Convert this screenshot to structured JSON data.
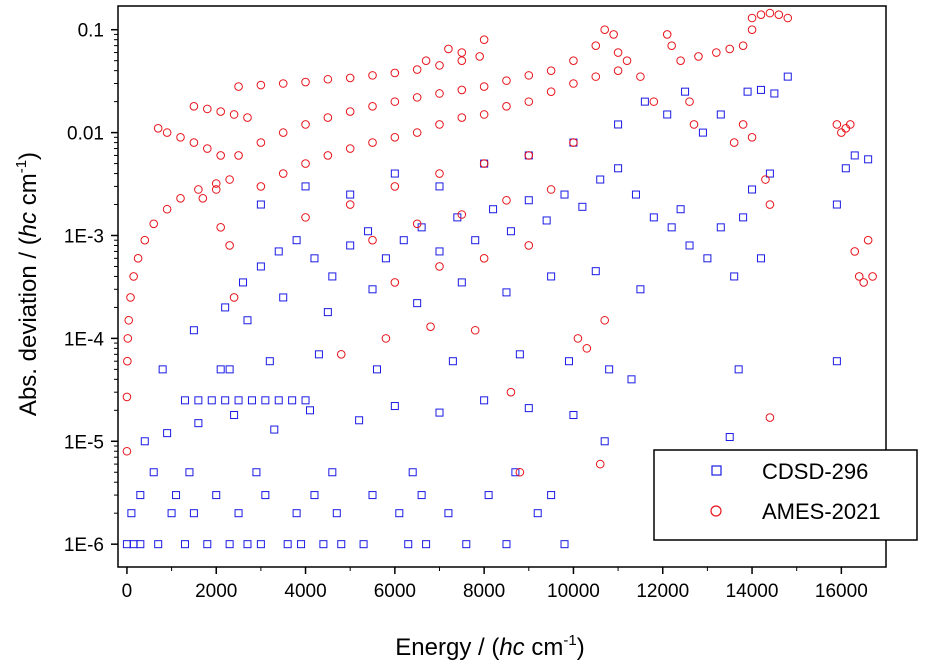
{
  "chart_data": {
    "type": "scatter",
    "title": "",
    "xlabel": {
      "prefix": "Energy / (",
      "italic": "hc",
      "unit": " cm",
      "sup": "-1",
      "suffix": ")"
    },
    "ylabel": {
      "prefix": "Abs. deviation / (",
      "italic": "hc",
      "unit": " cm",
      "sup": "-1",
      "suffix": ")"
    },
    "xlim": [
      -200,
      17000
    ],
    "ylim": [
      6e-07,
      0.17
    ],
    "yscale": "log",
    "x_ticks": [
      0,
      2000,
      4000,
      6000,
      8000,
      10000,
      12000,
      14000,
      16000
    ],
    "x_tick_labels": [
      "0",
      "2000",
      "4000",
      "6000",
      "8000",
      "10000",
      "12000",
      "14000",
      "16000"
    ],
    "y_ticks": [
      1e-06,
      1e-05,
      0.0001,
      0.001,
      0.01,
      0.1
    ],
    "y_tick_labels": [
      "1E-6",
      "1E-5",
      "1E-4",
      "1E-3",
      "0.01",
      "0.1"
    ],
    "legend_position": "bottom-right",
    "series": [
      {
        "name": "CDSD-296",
        "marker": "square",
        "color": "#1a1ae6",
        "note": "representative sample of the dense point cloud",
        "points": [
          [
            0,
            1e-06
          ],
          [
            150,
            1e-06
          ],
          [
            300,
            1e-06
          ],
          [
            700,
            1e-06
          ],
          [
            1300,
            1e-06
          ],
          [
            1800,
            1e-06
          ],
          [
            2300,
            1e-06
          ],
          [
            2700,
            1e-06
          ],
          [
            3000,
            1e-06
          ],
          [
            3600,
            1e-06
          ],
          [
            3900,
            1e-06
          ],
          [
            4400,
            1e-06
          ],
          [
            4800,
            1e-06
          ],
          [
            5300,
            1e-06
          ],
          [
            6300,
            1e-06
          ],
          [
            6700,
            1e-06
          ],
          [
            7600,
            1e-06
          ],
          [
            8500,
            1e-06
          ],
          [
            9800,
            1e-06
          ],
          [
            100,
            2e-06
          ],
          [
            1000,
            2e-06
          ],
          [
            1500,
            2e-06
          ],
          [
            2500,
            2e-06
          ],
          [
            3800,
            2e-06
          ],
          [
            4700,
            2e-06
          ],
          [
            6100,
            2e-06
          ],
          [
            7200,
            2e-06
          ],
          [
            9200,
            2e-06
          ],
          [
            300,
            3e-06
          ],
          [
            1100,
            3e-06
          ],
          [
            2000,
            3e-06
          ],
          [
            3100,
            3e-06
          ],
          [
            4200,
            3e-06
          ],
          [
            5500,
            3e-06
          ],
          [
            6600,
            3e-06
          ],
          [
            8100,
            3e-06
          ],
          [
            9500,
            3e-06
          ],
          [
            600,
            5e-06
          ],
          [
            1400,
            5e-06
          ],
          [
            2900,
            5e-06
          ],
          [
            4600,
            5e-06
          ],
          [
            6400,
            5e-06
          ],
          [
            8700,
            5e-06
          ],
          [
            400,
            1e-05
          ],
          [
            900,
            1.2e-05
          ],
          [
            1600,
            1.5e-05
          ],
          [
            2400,
            1.8e-05
          ],
          [
            3300,
            1.3e-05
          ],
          [
            4100,
            2e-05
          ],
          [
            5200,
            1.6e-05
          ],
          [
            6000,
            2.2e-05
          ],
          [
            7000,
            1.9e-05
          ],
          [
            8000,
            2.5e-05
          ],
          [
            9000,
            2.1e-05
          ],
          [
            10000,
            1.8e-05
          ],
          [
            10700,
            1e-05
          ],
          [
            13500,
            1.1e-05
          ],
          [
            1300,
            2.5e-05
          ],
          [
            1600,
            2.5e-05
          ],
          [
            1900,
            2.5e-05
          ],
          [
            2200,
            2.5e-05
          ],
          [
            2500,
            2.5e-05
          ],
          [
            2800,
            2.5e-05
          ],
          [
            3100,
            2.5e-05
          ],
          [
            3400,
            2.5e-05
          ],
          [
            3700,
            2.5e-05
          ],
          [
            4000,
            2.5e-05
          ],
          [
            800,
            5e-05
          ],
          [
            2100,
            5e-05
          ],
          [
            2300,
            5e-05
          ],
          [
            3200,
            6e-05
          ],
          [
            4300,
            7e-05
          ],
          [
            5600,
            5e-05
          ],
          [
            7300,
            6e-05
          ],
          [
            8800,
            7e-05
          ],
          [
            9900,
            6e-05
          ],
          [
            10800,
            5e-05
          ],
          [
            11300,
            4e-05
          ],
          [
            13700,
            5e-05
          ],
          [
            15900,
            6e-05
          ],
          [
            1500,
            0.00012
          ],
          [
            2200,
            0.0002
          ],
          [
            2600,
            0.00035
          ],
          [
            3000,
            0.0005
          ],
          [
            3400,
            0.0007
          ],
          [
            3800,
            0.0009
          ],
          [
            4200,
            0.0006
          ],
          [
            4600,
            0.0004
          ],
          [
            5000,
            0.0008
          ],
          [
            5400,
            0.0011
          ],
          [
            5800,
            0.0006
          ],
          [
            6200,
            0.0009
          ],
          [
            6600,
            0.0012
          ],
          [
            7000,
            0.0007
          ],
          [
            7400,
            0.0015
          ],
          [
            7800,
            0.0009
          ],
          [
            8200,
            0.0018
          ],
          [
            8600,
            0.0011
          ],
          [
            9000,
            0.0022
          ],
          [
            9400,
            0.0014
          ],
          [
            9800,
            0.0025
          ],
          [
            10200,
            0.0019
          ],
          [
            10600,
            0.0035
          ],
          [
            11000,
            0.0045
          ],
          [
            11400,
            0.0025
          ],
          [
            11800,
            0.0015
          ],
          [
            12200,
            0.0012
          ],
          [
            12400,
            0.0018
          ],
          [
            12600,
            0.0008
          ],
          [
            13000,
            0.0006
          ],
          [
            13300,
            0.0012
          ],
          [
            13600,
            0.0004
          ],
          [
            13800,
            0.0015
          ],
          [
            14000,
            0.0028
          ],
          [
            14200,
            0.0006
          ],
          [
            14400,
            0.004
          ],
          [
            15900,
            0.002
          ],
          [
            16100,
            0.0045
          ],
          [
            16300,
            0.006
          ],
          [
            16600,
            0.0055
          ],
          [
            2700,
            0.00015
          ],
          [
            3500,
            0.00025
          ],
          [
            4500,
            0.00018
          ],
          [
            5500,
            0.0003
          ],
          [
            6500,
            0.00022
          ],
          [
            7500,
            0.00035
          ],
          [
            8500,
            0.00028
          ],
          [
            9500,
            0.0004
          ],
          [
            10500,
            0.00045
          ],
          [
            11500,
            0.0003
          ],
          [
            11600,
            0.02
          ],
          [
            12100,
            0.015
          ],
          [
            12500,
            0.025
          ],
          [
            12900,
            0.01
          ],
          [
            13300,
            0.015
          ],
          [
            13900,
            0.025
          ],
          [
            14200,
            0.026
          ],
          [
            14500,
            0.024
          ],
          [
            14800,
            0.035
          ],
          [
            3000,
            0.002
          ],
          [
            4000,
            0.003
          ],
          [
            5000,
            0.0025
          ],
          [
            6000,
            0.004
          ],
          [
            7000,
            0.003
          ],
          [
            8000,
            0.005
          ],
          [
            9000,
            0.006
          ],
          [
            10000,
            0.008
          ],
          [
            11000,
            0.012
          ]
        ]
      },
      {
        "name": "AMES-2021",
        "marker": "circle",
        "color": "#e8141c",
        "note": "representative sample of the dense point cloud",
        "points": [
          [
            0,
            8e-06
          ],
          [
            0,
            2.7e-05
          ],
          [
            10,
            6e-05
          ],
          [
            20,
            0.0001
          ],
          [
            40,
            0.00015
          ],
          [
            80,
            0.00025
          ],
          [
            150,
            0.0004
          ],
          [
            250,
            0.0006
          ],
          [
            400,
            0.0009
          ],
          [
            600,
            0.0013
          ],
          [
            900,
            0.0018
          ],
          [
            1200,
            0.0023
          ],
          [
            1600,
            0.0028
          ],
          [
            2000,
            0.0032
          ],
          [
            700,
            0.011
          ],
          [
            900,
            0.01
          ],
          [
            1200,
            0.009
          ],
          [
            1500,
            0.008
          ],
          [
            1800,
            0.007
          ],
          [
            2100,
            0.006
          ],
          [
            1500,
            0.018
          ],
          [
            1800,
            0.017
          ],
          [
            2100,
            0.016
          ],
          [
            2400,
            0.015
          ],
          [
            2700,
            0.014
          ],
          [
            1700,
            0.0023
          ],
          [
            2000,
            0.0028
          ],
          [
            2300,
            0.0035
          ],
          [
            2100,
            0.0012
          ],
          [
            2300,
            0.0008
          ],
          [
            2400,
            0.00025
          ],
          [
            2500,
            0.028
          ],
          [
            3000,
            0.029
          ],
          [
            3500,
            0.03
          ],
          [
            4000,
            0.031
          ],
          [
            4500,
            0.033
          ],
          [
            5000,
            0.034
          ],
          [
            5500,
            0.036
          ],
          [
            6000,
            0.038
          ],
          [
            6500,
            0.041
          ],
          [
            7000,
            0.045
          ],
          [
            7500,
            0.05
          ],
          [
            7900,
            0.055
          ],
          [
            8000,
            0.08
          ],
          [
            6700,
            0.05
          ],
          [
            7200,
            0.065
          ],
          [
            7500,
            0.06
          ],
          [
            2500,
            0.006
          ],
          [
            3000,
            0.008
          ],
          [
            3500,
            0.01
          ],
          [
            4000,
            0.012
          ],
          [
            4500,
            0.014
          ],
          [
            5000,
            0.016
          ],
          [
            5500,
            0.018
          ],
          [
            6000,
            0.02
          ],
          [
            6500,
            0.022
          ],
          [
            7000,
            0.024
          ],
          [
            7500,
            0.026
          ],
          [
            8000,
            0.028
          ],
          [
            8500,
            0.032
          ],
          [
            9000,
            0.036
          ],
          [
            9500,
            0.04
          ],
          [
            10000,
            0.05
          ],
          [
            10500,
            0.07
          ],
          [
            10700,
            0.1
          ],
          [
            10900,
            0.09
          ],
          [
            11000,
            0.06
          ],
          [
            11200,
            0.05
          ],
          [
            11500,
            0.035
          ],
          [
            11800,
            0.02
          ],
          [
            3000,
            0.003
          ],
          [
            3500,
            0.004
          ],
          [
            4000,
            0.005
          ],
          [
            4500,
            0.006
          ],
          [
            5000,
            0.007
          ],
          [
            5500,
            0.008
          ],
          [
            6000,
            0.009
          ],
          [
            6500,
            0.01
          ],
          [
            7000,
            0.012
          ],
          [
            7500,
            0.014
          ],
          [
            8000,
            0.015
          ],
          [
            8500,
            0.018
          ],
          [
            9000,
            0.02
          ],
          [
            9500,
            0.025
          ],
          [
            10000,
            0.03
          ],
          [
            10500,
            0.035
          ],
          [
            11000,
            0.04
          ],
          [
            4000,
            0.0015
          ],
          [
            5000,
            0.002
          ],
          [
            6000,
            0.003
          ],
          [
            7000,
            0.004
          ],
          [
            8000,
            0.005
          ],
          [
            9000,
            0.006
          ],
          [
            10000,
            0.008
          ],
          [
            5500,
            0.0009
          ],
          [
            6500,
            0.0013
          ],
          [
            7500,
            0.0016
          ],
          [
            8500,
            0.0022
          ],
          [
            9500,
            0.0028
          ],
          [
            6000,
            0.00035
          ],
          [
            7000,
            0.0005
          ],
          [
            8000,
            0.0006
          ],
          [
            9000,
            0.0008
          ],
          [
            4800,
            7e-05
          ],
          [
            5800,
            0.0001
          ],
          [
            6800,
            0.00013
          ],
          [
            7800,
            0.00012
          ],
          [
            8600,
            3e-05
          ],
          [
            8800,
            5e-06
          ],
          [
            10600,
            6e-06
          ],
          [
            10100,
            0.0001
          ],
          [
            10700,
            0.00015
          ],
          [
            10300,
            8e-05
          ],
          [
            12100,
            0.09
          ],
          [
            12200,
            0.07
          ],
          [
            12400,
            0.05
          ],
          [
            12600,
            0.02
          ],
          [
            12700,
            0.012
          ],
          [
            12800,
            0.055
          ],
          [
            13200,
            0.06
          ],
          [
            13500,
            0.065
          ],
          [
            13800,
            0.07
          ],
          [
            14000,
            0.1
          ],
          [
            14000,
            0.13
          ],
          [
            14200,
            0.14
          ],
          [
            14400,
            0.145
          ],
          [
            14600,
            0.14
          ],
          [
            14800,
            0.13
          ],
          [
            13600,
            0.008
          ],
          [
            13800,
            0.012
          ],
          [
            14000,
            0.009
          ],
          [
            14300,
            0.0035
          ],
          [
            14400,
            0.002
          ],
          [
            14400,
            1.7e-05
          ],
          [
            15900,
            0.012
          ],
          [
            16000,
            0.01
          ],
          [
            16100,
            0.011
          ],
          [
            16200,
            0.012
          ],
          [
            16300,
            0.0007
          ],
          [
            16400,
            0.0004
          ],
          [
            16500,
            0.00035
          ],
          [
            16600,
            0.0009
          ],
          [
            16700,
            0.0004
          ]
        ]
      }
    ]
  }
}
